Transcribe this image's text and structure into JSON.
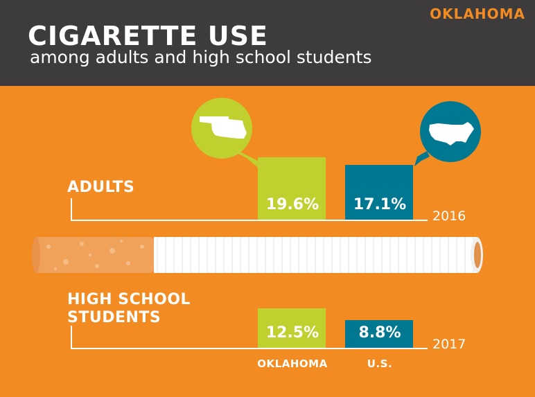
{
  "header": {
    "state": "OKLAHOMA",
    "title": "CIGARETTE USE",
    "subtitle": "among adults and high school students"
  },
  "colors": {
    "background": "#f28c22",
    "header": "#3d3b3c",
    "oklahoma": "#bfd02f",
    "us": "#007891"
  },
  "icons": [
    "oklahoma-map-icon",
    "us-map-icon",
    "cigarette-illustration"
  ],
  "chart_data": {
    "type": "bar",
    "categories": [
      "OKLAHOMA",
      "U.S."
    ],
    "series": [
      {
        "name": "ADULTS",
        "year": "2016",
        "values": [
          19.6,
          17.1
        ],
        "labels": [
          "19.6%",
          "17.1%"
        ]
      },
      {
        "name": "HIGH SCHOOL STUDENTS",
        "year": "2017",
        "values": [
          12.5,
          8.8
        ],
        "labels": [
          "12.5%",
          "8.8%"
        ]
      }
    ]
  }
}
